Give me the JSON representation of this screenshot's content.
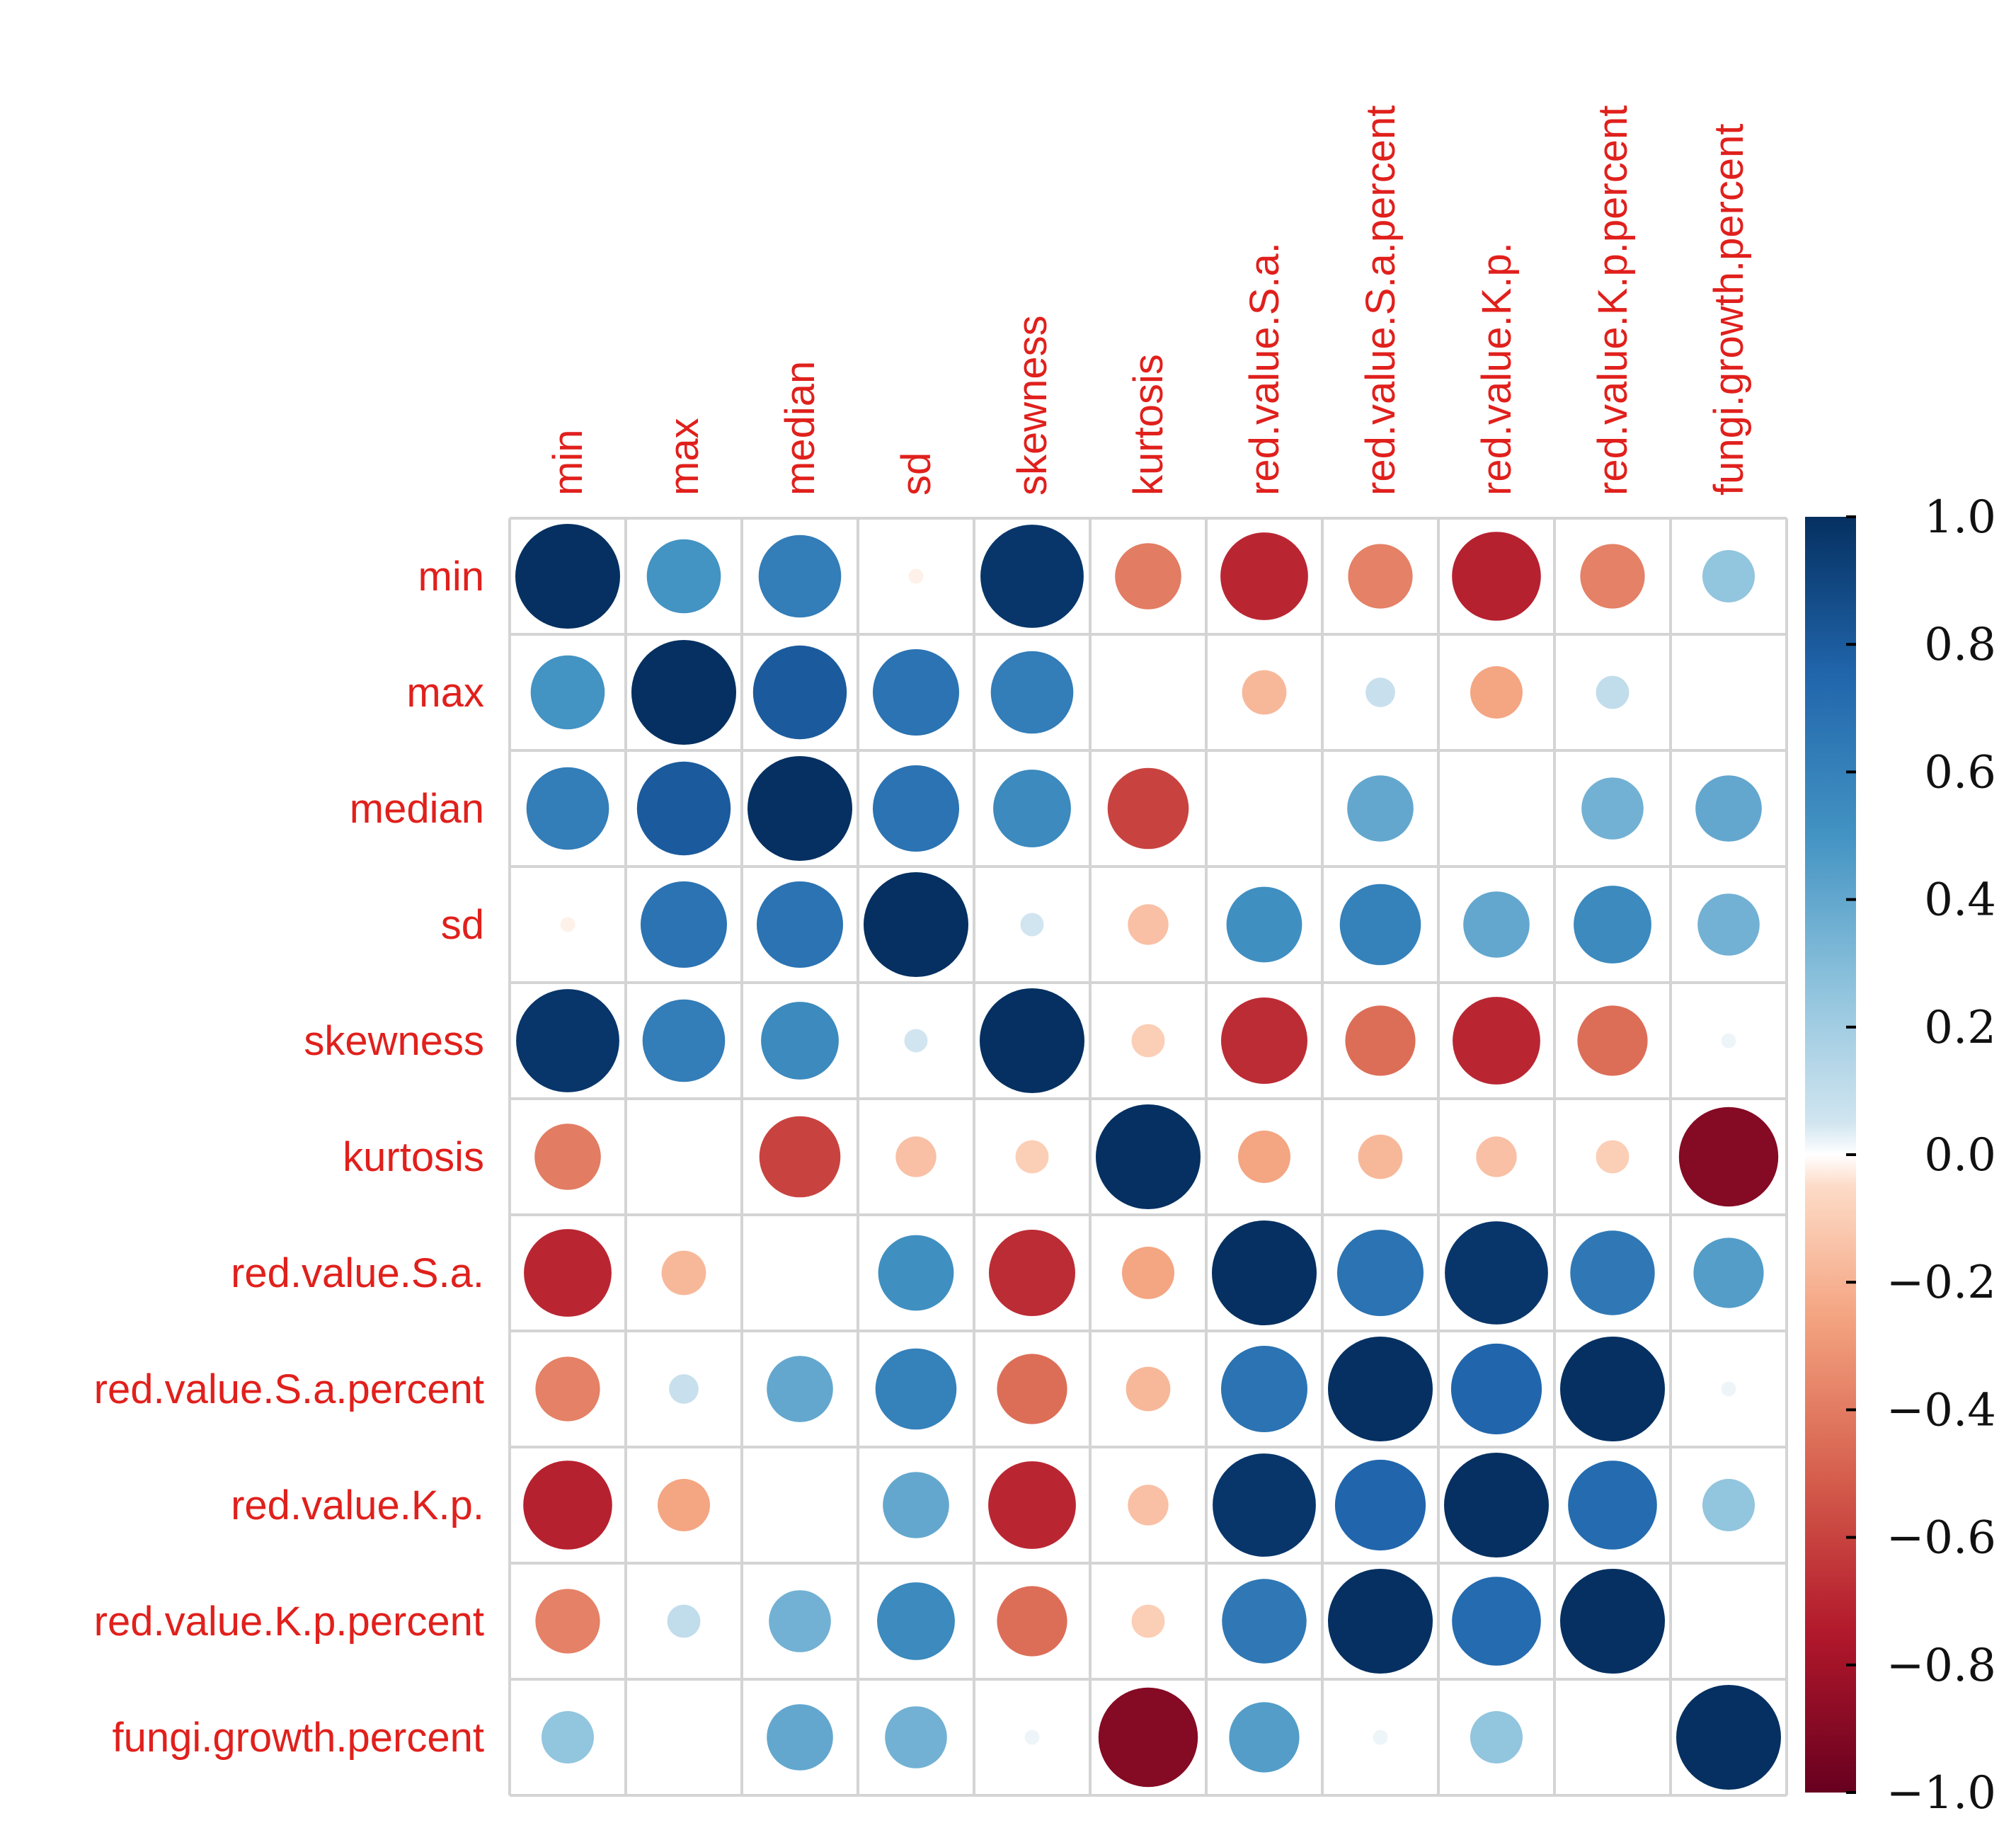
{
  "chart_data": {
    "type": "heatmap",
    "style": "correlation-circles",
    "variables": [
      "min",
      "max",
      "median",
      "sd",
      "skewness",
      "kurtosis",
      "red.value.S.a.",
      "red.value.S.a.percent",
      "red.value.K.p.",
      "red.value.K.p.percent",
      "fungi.growth.percent"
    ],
    "matrix": [
      [
        1.0,
        0.5,
        0.62,
        -0.02,
        0.97,
        -0.4,
        -0.7,
        -0.38,
        -0.72,
        -0.38,
        0.25
      ],
      [
        0.5,
        1.0,
        0.8,
        0.68,
        0.62,
        0.0,
        -0.18,
        0.08,
        -0.25,
        0.1,
        0.0
      ],
      [
        0.62,
        0.8,
        1.0,
        0.68,
        0.55,
        -0.6,
        0.0,
        0.4,
        0.0,
        0.35,
        0.4
      ],
      [
        -0.02,
        0.68,
        0.68,
        1.0,
        0.05,
        -0.15,
        0.52,
        0.6,
        0.4,
        0.55,
        0.35
      ],
      [
        0.97,
        0.62,
        0.55,
        0.05,
        1.0,
        -0.1,
        -0.68,
        -0.45,
        -0.7,
        -0.45,
        0.02
      ],
      [
        -0.4,
        0.0,
        -0.6,
        -0.15,
        -0.1,
        1.0,
        -0.25,
        -0.18,
        -0.15,
        -0.1,
        -0.9
      ],
      [
        -0.7,
        -0.18,
        0.0,
        0.52,
        -0.68,
        -0.25,
        1.0,
        0.68,
        0.97,
        0.65,
        0.45
      ],
      [
        -0.38,
        0.08,
        0.4,
        0.6,
        -0.45,
        -0.18,
        0.68,
        1.0,
        0.75,
        1.0,
        0.02
      ],
      [
        -0.72,
        -0.25,
        0.0,
        0.4,
        -0.7,
        -0.15,
        0.97,
        0.75,
        1.0,
        0.72,
        0.25
      ],
      [
        -0.38,
        0.1,
        0.35,
        0.55,
        -0.45,
        -0.1,
        0.65,
        1.0,
        0.72,
        1.0,
        0.0
      ],
      [
        0.25,
        0.0,
        0.4,
        0.35,
        0.02,
        -0.9,
        0.45,
        0.02,
        0.25,
        0.0,
        1.0
      ]
    ],
    "colorbar": {
      "min": -1.0,
      "max": 1.0,
      "ticks": [
        "1.0",
        "0.8",
        "0.6",
        "0.4",
        "0.2",
        "0.0",
        "−0.2",
        "−0.4",
        "−0.6",
        "−0.8",
        "−1.0"
      ],
      "tick_values": [
        1.0,
        0.8,
        0.6,
        0.4,
        0.2,
        0.0,
        -0.2,
        -0.4,
        -0.6,
        -0.8,
        -1.0
      ]
    },
    "colormap": {
      "stops": [
        {
          "value": -1.0,
          "color": "#67001f"
        },
        {
          "value": -0.75,
          "color": "#b2182b"
        },
        {
          "value": -0.5,
          "color": "#d6604d"
        },
        {
          "value": -0.25,
          "color": "#f4a582"
        },
        {
          "value": -0.05,
          "color": "#fddbc7"
        },
        {
          "value": 0.0,
          "color": "#ffffff"
        },
        {
          "value": 0.05,
          "color": "#d1e5f0"
        },
        {
          "value": 0.25,
          "color": "#92c5de"
        },
        {
          "value": 0.5,
          "color": "#4393c3"
        },
        {
          "value": 0.75,
          "color": "#2166ac"
        },
        {
          "value": 1.0,
          "color": "#053061"
        }
      ]
    },
    "label_color": "#e0201c"
  }
}
